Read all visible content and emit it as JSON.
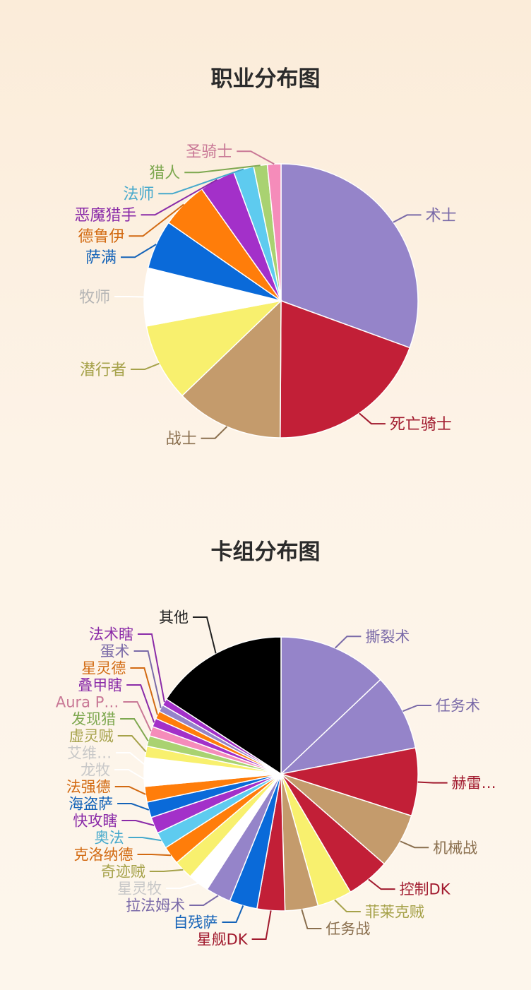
{
  "chart_data": [
    {
      "type": "pie",
      "title": "职业分布图",
      "slices": [
        {
          "label": "术士",
          "value": 30.5,
          "color": "#9584c9",
          "label_color": "#7a6aa8"
        },
        {
          "label": "死亡骑士",
          "value": 19.5,
          "color": "#c21f37",
          "label_color": "#a11a2e"
        },
        {
          "label": "战士",
          "value": 12.7,
          "color": "#c49b6c",
          "label_color": "#8a6f4e"
        },
        {
          "label": "潜行者",
          "value": 9.2,
          "color": "#f8f06e",
          "label_color": "#a6a24a"
        },
        {
          "label": "牧师",
          "value": 6.8,
          "color": "#ffffff",
          "label_color": "#b5b5b5"
        },
        {
          "label": "萨满",
          "value": 5.8,
          "color": "#0a6ad9",
          "label_color": "#1463b8"
        },
        {
          "label": "德鲁伊",
          "value": 5.5,
          "color": "#ff7d0a",
          "label_color": "#d26a12"
        },
        {
          "label": "恶魔猎手",
          "value": 4.2,
          "color": "#a330c9",
          "label_color": "#8a2ba8"
        },
        {
          "label": "法师",
          "value": 2.4,
          "color": "#5ecbef",
          "label_color": "#46a9cc"
        },
        {
          "label": "猎人",
          "value": 1.6,
          "color": "#a9d271",
          "label_color": "#7ea850"
        },
        {
          "label": "圣骑士",
          "value": 1.6,
          "color": "#f58cba",
          "label_color": "#c97896"
        }
      ]
    },
    {
      "type": "pie",
      "title": "卡组分布图",
      "slices": [
        {
          "label": "撕裂术",
          "value": 12.6,
          "color": "#9584c9",
          "label_color": "#7a6aa8"
        },
        {
          "label": "任务术",
          "value": 8.8,
          "color": "#9584c9",
          "label_color": "#7a6aa8"
        },
        {
          "label": "赫雷…",
          "value": 7.8,
          "color": "#c21f37",
          "label_color": "#a11a2e"
        },
        {
          "label": "机械战",
          "value": 6.3,
          "color": "#c49b6c",
          "label_color": "#8a6f4e"
        },
        {
          "label": "控制DK",
          "value": 5.0,
          "color": "#c21f37",
          "label_color": "#a11a2e"
        },
        {
          "label": "菲莱克贼",
          "value": 4.0,
          "color": "#f8f06e",
          "label_color": "#a6a24a"
        },
        {
          "label": "任务战",
          "value": 3.8,
          "color": "#c49b6c",
          "label_color": "#8a6f4e"
        },
        {
          "label": "星舰DK",
          "value": 3.2,
          "color": "#c21f37",
          "label_color": "#a11a2e"
        },
        {
          "label": "自残萨",
          "value": 3.2,
          "color": "#0a6ad9",
          "label_color": "#1463b8"
        },
        {
          "label": "拉法姆术",
          "value": 2.9,
          "color": "#9584c9",
          "label_color": "#7a6aa8"
        },
        {
          "label": "星灵牧",
          "value": 2.4,
          "color": "#ffffff",
          "label_color": "#c8c8c8"
        },
        {
          "label": "奇迹贼",
          "value": 2.2,
          "color": "#f8f06e",
          "label_color": "#a6a24a"
        },
        {
          "label": "克洛纳德",
          "value": 2.1,
          "color": "#ff7d0a",
          "label_color": "#d26a12"
        },
        {
          "label": "奥法",
          "value": 1.9,
          "color": "#5ecbef",
          "label_color": "#46a9cc"
        },
        {
          "label": "快攻瞎",
          "value": 1.9,
          "color": "#a330c9",
          "label_color": "#8a2ba8"
        },
        {
          "label": "海盗萨",
          "value": 1.8,
          "color": "#0a6ad9",
          "label_color": "#1463b8"
        },
        {
          "label": "法强德",
          "value": 1.8,
          "color": "#ff7d0a",
          "label_color": "#d26a12"
        },
        {
          "label": "龙牧",
          "value": 1.7,
          "color": "#ffffff",
          "label_color": "#c8c8c8"
        },
        {
          "label": "艾维…",
          "value": 1.6,
          "color": "#ffffff",
          "label_color": "#c8c8c8"
        },
        {
          "label": "虚灵贼",
          "value": 1.3,
          "color": "#f8f06e",
          "label_color": "#a6a24a"
        },
        {
          "label": "发现猎",
          "value": 1.2,
          "color": "#a9d271",
          "label_color": "#7ea850"
        },
        {
          "label": "Aura P…",
          "value": 1.1,
          "color": "#f58cba",
          "label_color": "#c97896"
        },
        {
          "label": "叠甲瞎",
          "value": 1.0,
          "color": "#a330c9",
          "label_color": "#8a2ba8"
        },
        {
          "label": "星灵德",
          "value": 0.9,
          "color": "#ff7d0a",
          "label_color": "#d26a12"
        },
        {
          "label": "蛋术",
          "value": 0.8,
          "color": "#9584c9",
          "label_color": "#7a6aa8"
        },
        {
          "label": "法术瞎",
          "value": 0.8,
          "color": "#a330c9",
          "label_color": "#8a2ba8"
        },
        {
          "label": "其他",
          "value": 15.4,
          "color": "#000000",
          "label_color": "#222222"
        }
      ]
    }
  ]
}
